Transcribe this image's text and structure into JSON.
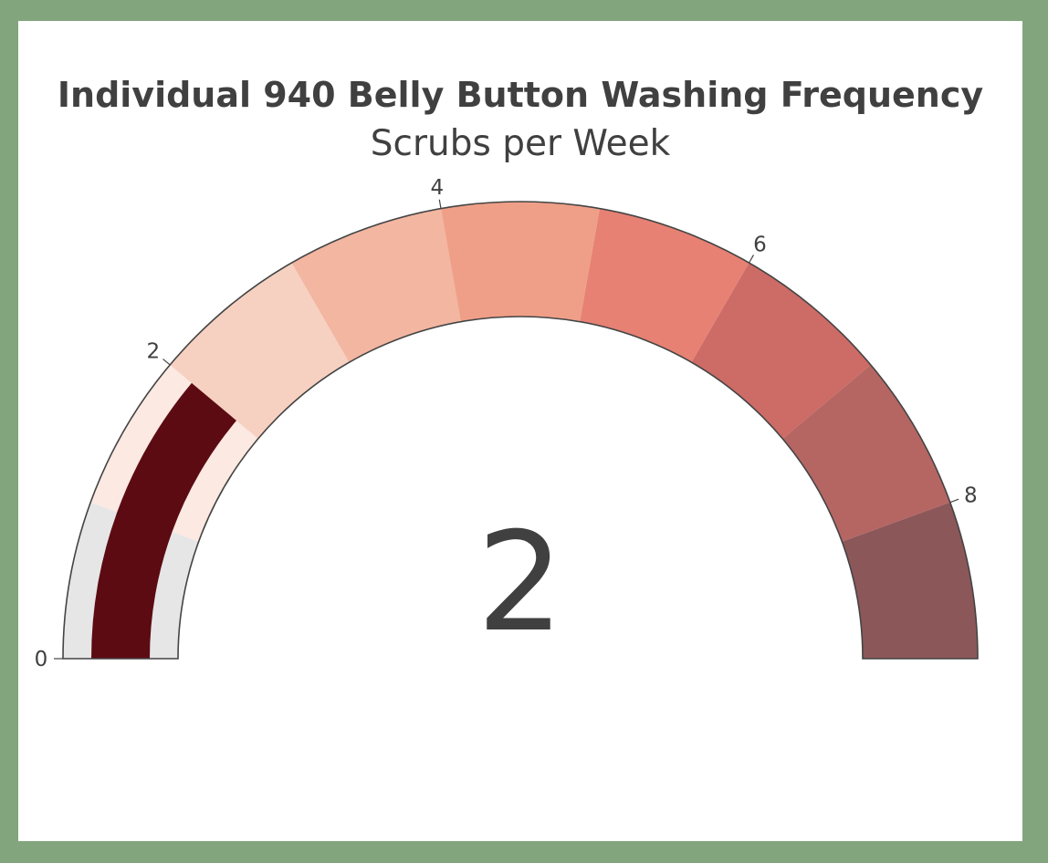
{
  "chart_data": {
    "type": "gauge",
    "title": "Individual 940 Belly Button Washing Frequency",
    "subtitle": "Scrubs per Week",
    "value": 2,
    "value_label": "2",
    "range": [
      0,
      9
    ],
    "ticks": [
      {
        "value": 0,
        "label": "0"
      },
      {
        "value": 2,
        "label": "2"
      },
      {
        "value": 4,
        "label": "4"
      },
      {
        "value": 6,
        "label": "6"
      },
      {
        "value": 8,
        "label": "8"
      }
    ],
    "steps": [
      {
        "range": [
          0,
          1
        ],
        "color": "#e6e6e6"
      },
      {
        "range": [
          1,
          2
        ],
        "color": "#fbe9e2"
      },
      {
        "range": [
          2,
          3
        ],
        "color": "#f6d1c1"
      },
      {
        "range": [
          3,
          4
        ],
        "color": "#f2b6a1"
      },
      {
        "range": [
          4,
          5
        ],
        "color": "#ef9f88"
      },
      {
        "range": [
          5,
          6
        ],
        "color": "#e68174"
      },
      {
        "range": [
          6,
          7
        ],
        "color": "#cd6b66"
      },
      {
        "range": [
          7,
          8
        ],
        "color": "#b56663"
      },
      {
        "range": [
          8,
          9
        ],
        "color": "#8c5759"
      }
    ],
    "bar_color": "#5c0b13",
    "background_color": "#83a57e",
    "plot_background": "#ffffff",
    "text_color": "#404040"
  }
}
